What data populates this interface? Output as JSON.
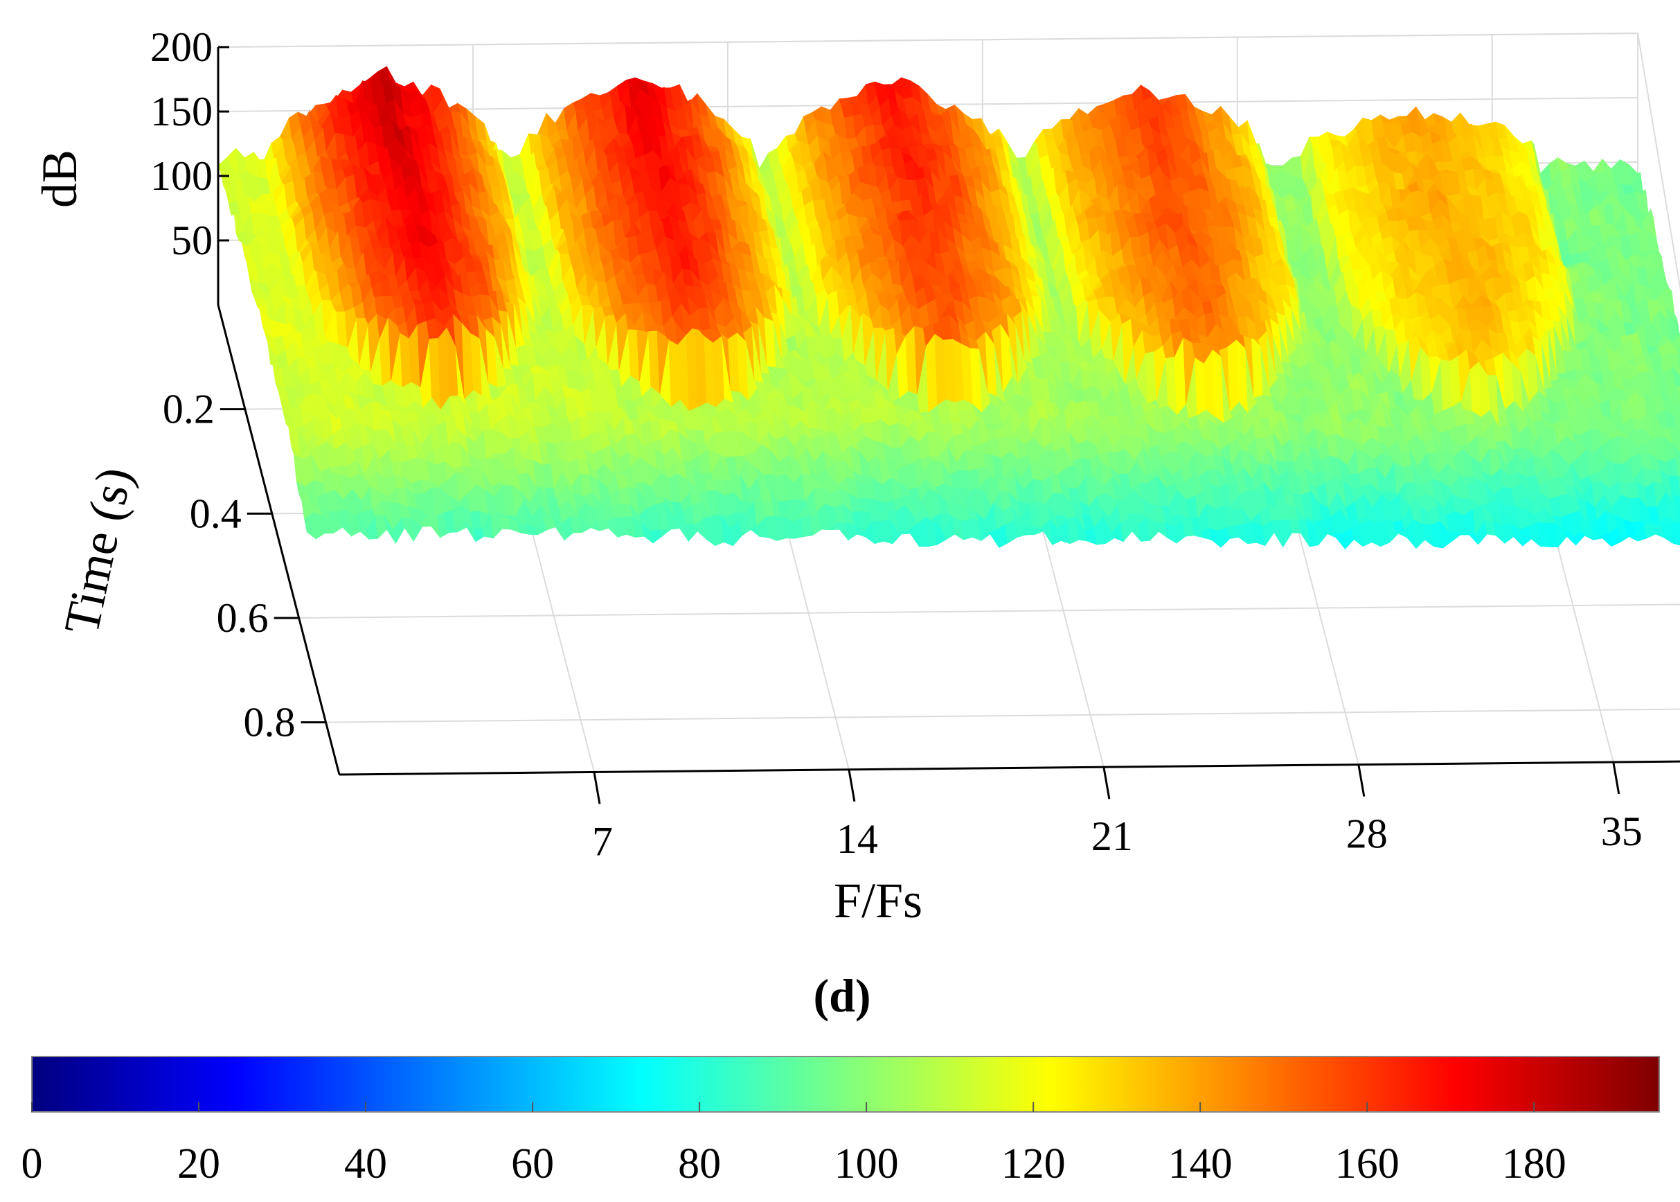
{
  "chart_data": {
    "type": "surface",
    "panel_label": "(d)",
    "xlabel": "F/Fs",
    "ylabel": "Time (s)",
    "zlabel": "dB",
    "x_ticks": [
      "7",
      "14",
      "21",
      "28",
      "35"
    ],
    "y_ticks": [
      "0.2",
      "0.4",
      "0.6",
      "0.8"
    ],
    "z_ticks": [
      "50",
      "100",
      "150",
      "200"
    ],
    "xlim": [
      0,
      39
    ],
    "ylim": [
      0,
      0.9
    ],
    "zlim": [
      0,
      200
    ],
    "grid": true,
    "colormap": "jet",
    "colorbar": {
      "location": "bottom",
      "range": [
        0,
        195
      ],
      "ticks": [
        "0",
        "20",
        "40",
        "60",
        "80",
        "100",
        "120",
        "140",
        "160",
        "180"
      ],
      "stops": [
        "#00007f",
        "#0000ff",
        "#007fff",
        "#00ffff",
        "#7fff7f",
        "#ffff00",
        "#ff7f00",
        "#ff0000",
        "#7f0000"
      ]
    },
    "harmonic_groups": [
      {
        "center_x": 4.5,
        "peak_db": 182,
        "end_time": 0.45
      },
      {
        "center_x": 11.5,
        "peak_db": 175,
        "end_time": 0.46
      },
      {
        "center_x": 18.5,
        "peak_db": 168,
        "end_time": 0.46
      },
      {
        "center_x": 25.5,
        "peak_db": 160,
        "end_time": 0.47
      },
      {
        "center_x": 33.0,
        "peak_db": 140,
        "end_time": 0.47
      }
    ],
    "background_db": 115,
    "floor_db": 90
  }
}
